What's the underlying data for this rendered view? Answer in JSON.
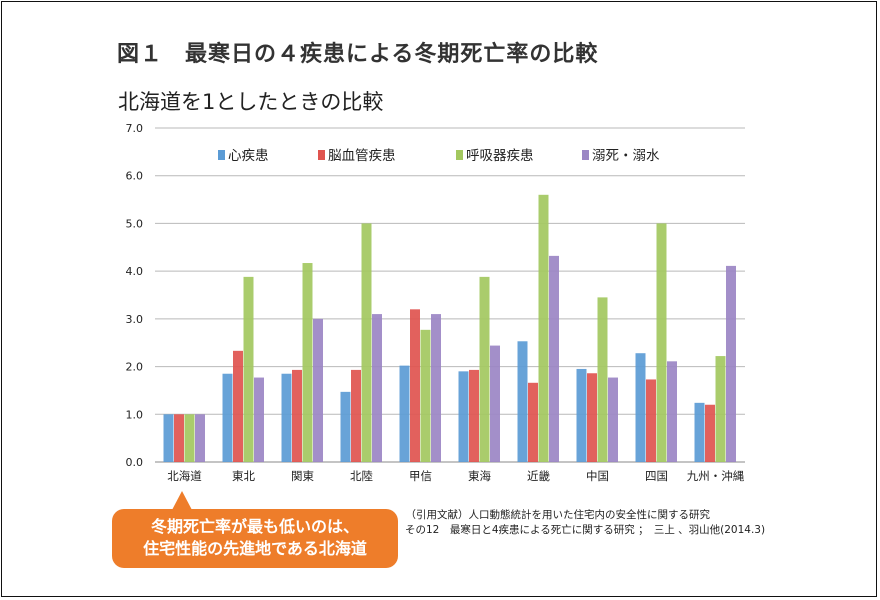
{
  "figure": {
    "label": "図１",
    "title": "最寒日の４疾患による冬期死亡率の比較"
  },
  "callout": {
    "line1": "冬期死亡率が最も低いのは、",
    "line2": "住宅性能の先進地である北海道",
    "color": "#ee7d2a"
  },
  "citation": {
    "line1": "（引用文献）人口動態統計を用いた住宅内の安全性に関する研究",
    "line2": "その12　最寒日と4疾患による死亡に関する研究 ；　三上 、羽山他(2014.3)"
  },
  "chart_data": {
    "type": "bar",
    "title": "北海道を1としたときの比較",
    "xlabel": "",
    "ylabel": "",
    "categories": [
      "北海道",
      "東北",
      "関東",
      "北陸",
      "甲信",
      "東海",
      "近畿",
      "中国",
      "四国",
      "九州・沖縄"
    ],
    "series": [
      {
        "name": "心疾患",
        "color": "#5b9bd5",
        "values": [
          1.0,
          1.85,
          1.85,
          1.47,
          2.02,
          1.9,
          2.53,
          1.95,
          2.28,
          1.24
        ]
      },
      {
        "name": "脳血管疾患",
        "color": "#e0544f",
        "values": [
          1.0,
          2.33,
          1.93,
          1.93,
          3.2,
          1.93,
          1.66,
          1.86,
          1.73,
          1.2
        ]
      },
      {
        "name": "呼吸器疾患",
        "color": "#a3c85f",
        "values": [
          1.0,
          3.88,
          4.17,
          5.0,
          2.77,
          3.88,
          5.6,
          3.45,
          5.0,
          2.22
        ]
      },
      {
        "name": "溺死・溺水",
        "color": "#9b86c4",
        "values": [
          1.0,
          1.77,
          3.0,
          3.1,
          3.1,
          2.44,
          4.32,
          1.77,
          2.11,
          4.11
        ]
      }
    ],
    "ylim": [
      0,
      7
    ],
    "yticks": [
      "0.0",
      "1.0",
      "2.0",
      "3.0",
      "4.0",
      "5.0",
      "6.0",
      "7.0"
    ],
    "grid": true,
    "legend_position": "top"
  }
}
